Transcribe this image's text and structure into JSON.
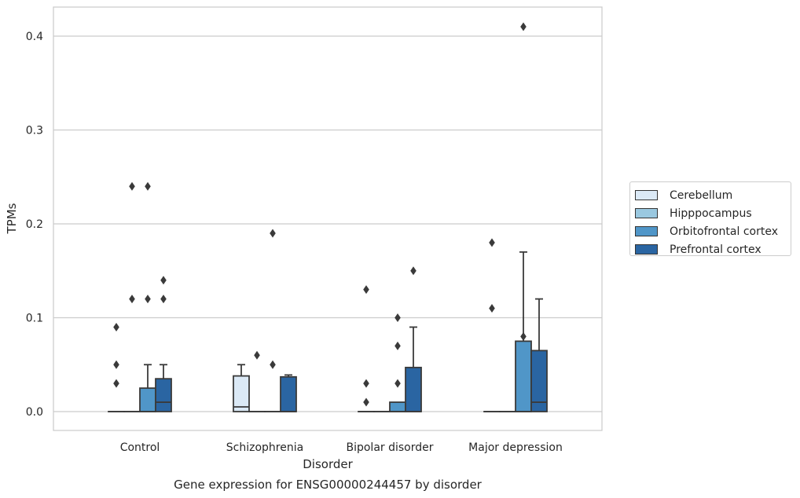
{
  "chart_data": {
    "type": "box",
    "title": "",
    "caption": "Gene expression for ENSG00000244457 by disorder",
    "xlabel": "Disorder",
    "ylabel": "TPMs",
    "ylim": [
      -0.02,
      0.43
    ],
    "yticks": [
      0.0,
      0.1,
      0.2,
      0.3,
      0.4
    ],
    "ytick_labels": [
      "0.0",
      "0.1",
      "0.2",
      "0.3",
      "0.4"
    ],
    "grid": "horizontal",
    "legend_position": "right",
    "categories": [
      "Control",
      "Schizophrenia",
      "Bipolar disorder",
      "Major depression"
    ],
    "series": [
      {
        "name": "Cerebellum",
        "color": "#dbe9f6",
        "boxes": [
          {
            "q1": 0,
            "median": 0,
            "q3": 0,
            "whislo": 0,
            "whishi": 0,
            "fliers": [
              0.03,
              0.05,
              0.09
            ]
          },
          {
            "q1": 0,
            "median": 0.005,
            "q3": 0.038,
            "whislo": 0,
            "whishi": 0.05,
            "fliers": []
          },
          {
            "q1": 0,
            "median": 0,
            "q3": 0,
            "whislo": 0,
            "whishi": 0,
            "fliers": [
              0.01,
              0.03,
              0.13
            ]
          },
          {
            "q1": 0,
            "median": 0,
            "q3": 0,
            "whislo": 0,
            "whishi": 0,
            "fliers": [
              0.11,
              0.18
            ]
          }
        ]
      },
      {
        "name": "Hipppocampus",
        "color": "#9ac8e0",
        "boxes": [
          {
            "q1": 0,
            "median": 0,
            "q3": 0,
            "whislo": 0,
            "whishi": 0,
            "fliers": [
              0.12,
              0.24
            ]
          },
          {
            "q1": 0,
            "median": 0,
            "q3": 0,
            "whislo": 0,
            "whishi": 0,
            "fliers": [
              0.06
            ]
          },
          {
            "q1": 0,
            "median": 0,
            "q3": 0,
            "whislo": 0,
            "whishi": 0,
            "fliers": []
          },
          {
            "q1": 0,
            "median": 0,
            "q3": 0,
            "whislo": 0,
            "whishi": 0,
            "fliers": []
          }
        ]
      },
      {
        "name": "Orbitofrontal cortex",
        "color": "#5096c8",
        "boxes": [
          {
            "q1": 0,
            "median": 0,
            "q3": 0.025,
            "whislo": 0,
            "whishi": 0.05,
            "fliers": [
              0.12,
              0.24
            ]
          },
          {
            "q1": 0,
            "median": 0,
            "q3": 0,
            "whislo": 0,
            "whishi": 0,
            "fliers": [
              0.05,
              0.19
            ]
          },
          {
            "q1": 0,
            "median": 0,
            "q3": 0.01,
            "whislo": 0,
            "whishi": 0.01,
            "fliers": [
              0.03,
              0.07,
              0.1
            ]
          },
          {
            "q1": 0,
            "median": 0,
            "q3": 0.075,
            "whislo": 0,
            "whishi": 0.17,
            "fliers": [
              0.08,
              0.41
            ]
          }
        ]
      },
      {
        "name": "Prefrontal cortex",
        "color": "#2a65a2",
        "boxes": [
          {
            "q1": 0,
            "median": 0.01,
            "q3": 0.035,
            "whislo": 0,
            "whishi": 0.05,
            "fliers": [
              0.12,
              0.14
            ]
          },
          {
            "q1": 0,
            "median": 0,
            "q3": 0.037,
            "whislo": 0,
            "whishi": 0.039,
            "fliers": []
          },
          {
            "q1": 0,
            "median": 0,
            "q3": 0.047,
            "whislo": 0,
            "whishi": 0.09,
            "fliers": [
              0.15
            ]
          },
          {
            "q1": 0,
            "median": 0.01,
            "q3": 0.065,
            "whislo": 0,
            "whishi": 0.12,
            "fliers": []
          }
        ]
      }
    ]
  }
}
